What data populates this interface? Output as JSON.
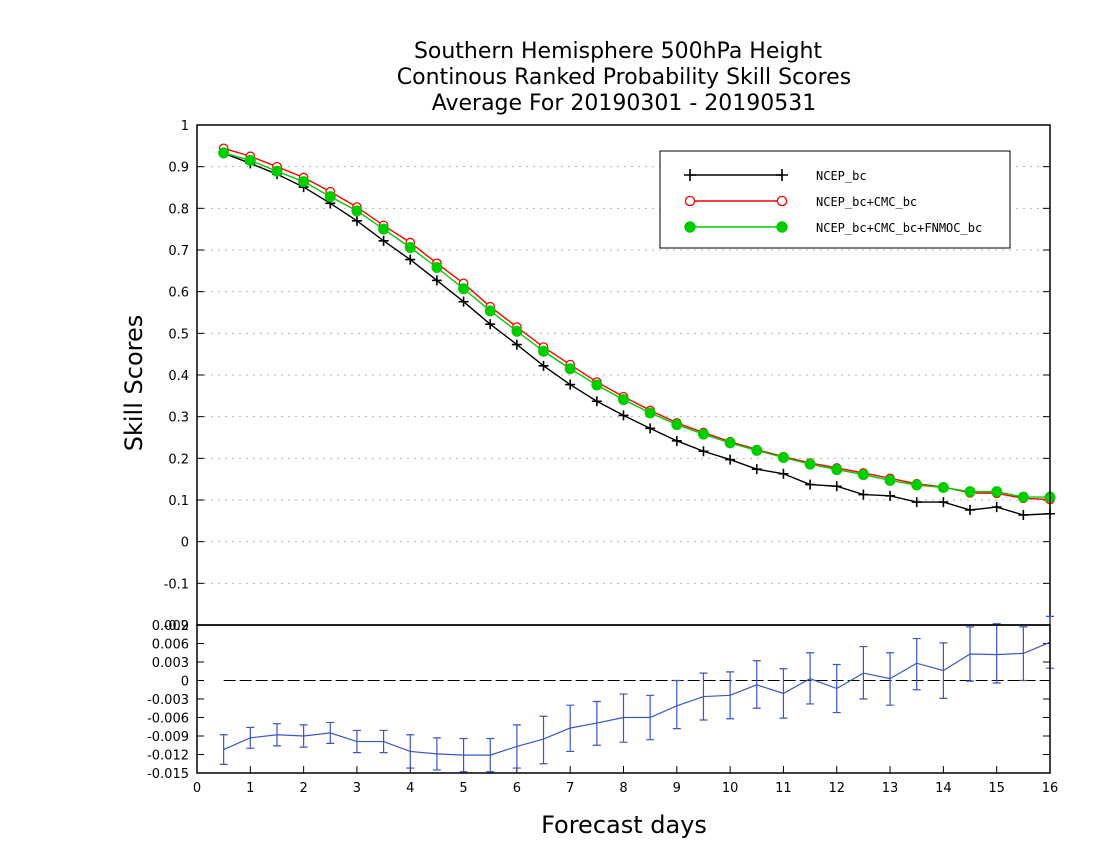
{
  "chart_data": [
    {
      "type": "line",
      "title_lines": [
        "Southern Hemisphere 500hPa Height",
        "Continous Ranked Probability Skill Scores",
        "Average For 20190301 - 20190531"
      ],
      "ylabel": "Skill Scores",
      "xlim": [
        0,
        16
      ],
      "ylim": [
        -0.2,
        1
      ],
      "yticks": [
        "1",
        "0.9",
        "0.8",
        "0.7",
        "0.6",
        "0.5",
        "0.4",
        "0.3",
        "0.2",
        "0.1",
        "0",
        "-0.1",
        "-0.2"
      ],
      "grid": true,
      "legend_position": "top-right",
      "x": [
        0.5,
        1,
        1.5,
        2,
        2.5,
        3,
        3.5,
        4,
        4.5,
        5,
        5.5,
        6,
        6.5,
        7,
        7.5,
        8,
        8.5,
        9,
        9.5,
        10,
        10.5,
        11,
        11.5,
        12,
        12.5,
        13,
        13.5,
        14,
        14.5,
        15,
        15.5,
        16
      ],
      "series": [
        {
          "name": "NCEP_bc",
          "color": "#000000",
          "marker": "plus",
          "values": [
            0.932,
            0.908,
            0.882,
            0.851,
            0.812,
            0.77,
            0.722,
            0.677,
            0.627,
            0.576,
            0.522,
            0.473,
            0.422,
            0.377,
            0.337,
            0.303,
            0.272,
            0.242,
            0.217,
            0.197,
            0.174,
            0.163,
            0.137,
            0.133,
            0.113,
            0.11,
            0.095,
            0.095,
            0.076,
            0.083,
            0.064,
            0.067
          ]
        },
        {
          "name": "NCEP_bc+CMC_bc",
          "color": "#ff0000",
          "marker": "circle-open",
          "values": [
            0.944,
            0.925,
            0.9,
            0.874,
            0.84,
            0.803,
            0.759,
            0.718,
            0.668,
            0.62,
            0.564,
            0.515,
            0.467,
            0.425,
            0.383,
            0.348,
            0.315,
            0.285,
            0.262,
            0.24,
            0.221,
            0.204,
            0.189,
            0.177,
            0.165,
            0.152,
            0.139,
            0.131,
            0.117,
            0.116,
            0.104,
            0.101
          ]
        },
        {
          "name": "NCEP_bc+CMC_bc+FNMOC_bc",
          "color": "#00cc00",
          "marker": "circle-filled",
          "values": [
            0.933,
            0.915,
            0.889,
            0.864,
            0.828,
            0.794,
            0.75,
            0.706,
            0.658,
            0.607,
            0.554,
            0.505,
            0.457,
            0.415,
            0.376,
            0.341,
            0.309,
            0.281,
            0.258,
            0.237,
            0.219,
            0.202,
            0.186,
            0.173,
            0.161,
            0.147,
            0.136,
            0.13,
            0.12,
            0.12,
            0.107,
            0.107
          ]
        }
      ]
    },
    {
      "type": "line",
      "xlabel": "Forecast days",
      "xlim": [
        0,
        16
      ],
      "ylim": [
        -0.015,
        0.009
      ],
      "xticks": [
        "0",
        "1",
        "2",
        "3",
        "4",
        "5",
        "6",
        "7",
        "8",
        "9",
        "10",
        "11",
        "12",
        "13",
        "14",
        "15",
        "16"
      ],
      "yticks": [
        "0.009",
        "0.006",
        "0.003",
        "0",
        "-0.003",
        "-0.006",
        "-0.009",
        "-0.012",
        "-0.015"
      ],
      "zero_line": true,
      "x": [
        0.5,
        1,
        1.5,
        2,
        2.5,
        3,
        3.5,
        4,
        4.5,
        5,
        5.5,
        6,
        6.5,
        7,
        7.5,
        8,
        8.5,
        9,
        9.5,
        10,
        10.5,
        11,
        11.5,
        12,
        12.5,
        13,
        13.5,
        14,
        14.5,
        15,
        15.5,
        16
      ],
      "series": [
        {
          "color": "#3a55c8",
          "values": [
            -0.0112,
            -0.0093,
            -0.0088,
            -0.009,
            -0.0085,
            -0.0099,
            -0.0099,
            -0.0115,
            -0.0119,
            -0.0121,
            -0.0121,
            -0.0107,
            -0.0095,
            -0.0077,
            -0.0069,
            -0.006,
            -0.006,
            -0.0041,
            -0.0026,
            -0.0024,
            -0.0007,
            -0.0021,
            0.0003,
            -0.0013,
            0.0012,
            0.0003,
            0.0028,
            0.0016,
            0.0043,
            0.0042,
            0.0044,
            0.0062
          ],
          "error_low": [
            -0.0136,
            -0.011,
            -0.0106,
            -0.0108,
            -0.0102,
            -0.0117,
            -0.0117,
            -0.0142,
            -0.0145,
            -0.0148,
            -0.0148,
            -0.0142,
            -0.0135,
            -0.0115,
            -0.0105,
            -0.01,
            -0.0096,
            -0.0078,
            -0.0064,
            -0.0062,
            -0.0045,
            -0.0061,
            -0.0038,
            -0.0052,
            -0.003,
            -0.004,
            -0.0015,
            -0.0029,
            -0.0001,
            -0.0004,
            0.0,
            0.002
          ],
          "error_high": [
            -0.0088,
            -0.0076,
            -0.007,
            -0.0072,
            -0.0068,
            -0.0081,
            -0.0081,
            -0.0088,
            -0.0093,
            -0.0094,
            -0.0094,
            -0.0072,
            -0.0058,
            -0.004,
            -0.0034,
            -0.0022,
            -0.0024,
            0.0,
            0.0012,
            0.0014,
            0.0032,
            0.0019,
            0.0045,
            0.0026,
            0.0055,
            0.0045,
            0.0068,
            0.0061,
            0.0087,
            0.0092,
            0.0087,
            0.0104
          ]
        }
      ]
    }
  ]
}
